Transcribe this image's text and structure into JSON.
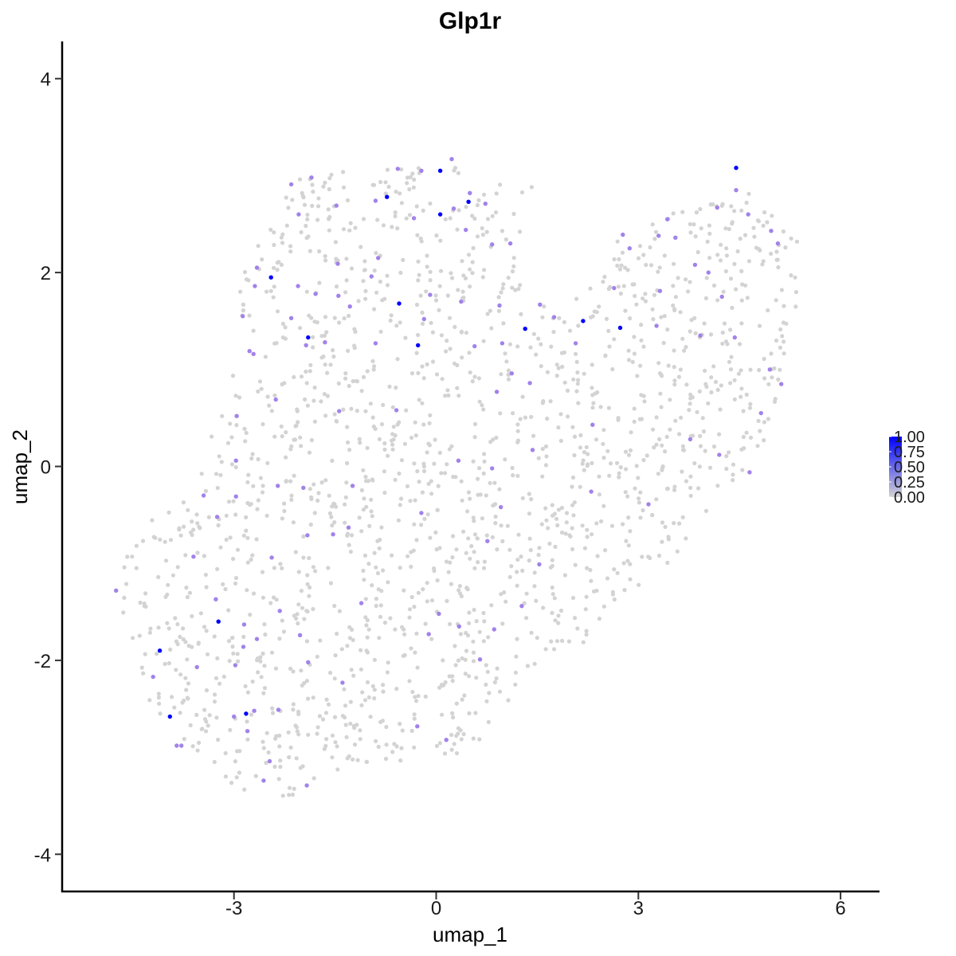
{
  "chart_data": {
    "type": "scatter",
    "title": "Glp1r",
    "xlabel": "umap_1",
    "ylabel": "umap_2",
    "xlim": [
      -5.55,
      6.6
    ],
    "ylim": [
      -4.35,
      4.4
    ],
    "xticks": [
      -3,
      0,
      3,
      6
    ],
    "yticks": [
      -4,
      -2,
      0,
      2,
      4
    ],
    "xtick_labels": [
      "-3",
      "0",
      "3",
      "6"
    ],
    "ytick_labels": [
      "-4",
      "-2",
      "0",
      "2",
      "4"
    ],
    "grid": false,
    "color_scale": {
      "low_color": "#d3d3d3",
      "high_color": "#0000ff",
      "min": 0,
      "max": 1,
      "breaks": [
        1.0,
        0.75,
        0.5,
        0.25,
        0.0
      ],
      "labels": [
        "1.00",
        "0.75",
        "0.50",
        "0.25",
        "0.00"
      ],
      "legend_position": "right"
    },
    "expressing_points": [
      {
        "x": 0.06,
        "y": 3.05,
        "value": 1.0
      },
      {
        "x": 4.45,
        "y": 3.08,
        "value": 1.0
      },
      {
        "x": -0.73,
        "y": 2.78,
        "value": 0.95
      },
      {
        "x": 0.48,
        "y": 2.73,
        "value": 0.95
      },
      {
        "x": 0.06,
        "y": 2.6,
        "value": 0.95
      },
      {
        "x": -2.45,
        "y": 1.95,
        "value": 0.95
      },
      {
        "x": -0.55,
        "y": 1.68,
        "value": 0.95
      },
      {
        "x": -1.9,
        "y": 1.33,
        "value": 0.95
      },
      {
        "x": -0.27,
        "y": 1.25,
        "value": 0.95
      },
      {
        "x": 1.32,
        "y": 1.42,
        "value": 0.95
      },
      {
        "x": 2.18,
        "y": 1.5,
        "value": 0.95
      },
      {
        "x": 2.73,
        "y": 1.43,
        "value": 0.95
      },
      {
        "x": -3.23,
        "y": -1.6,
        "value": 0.95
      },
      {
        "x": -4.1,
        "y": -1.9,
        "value": 0.95
      },
      {
        "x": -2.82,
        "y": -2.55,
        "value": 0.95
      },
      {
        "x": -3.95,
        "y": -2.58,
        "value": 0.95
      },
      {
        "x": 0.23,
        "y": 3.17,
        "value": 0.6
      },
      {
        "x": -0.22,
        "y": 3.05,
        "value": 0.6
      },
      {
        "x": -0.57,
        "y": 3.07,
        "value": 0.6
      },
      {
        "x": -1.85,
        "y": 2.98,
        "value": 0.6
      },
      {
        "x": -2.15,
        "y": 2.91,
        "value": 0.6
      },
      {
        "x": -1.48,
        "y": 2.69,
        "value": 0.6
      },
      {
        "x": -0.9,
        "y": 2.74,
        "value": 0.6
      },
      {
        "x": 0.5,
        "y": 2.82,
        "value": 0.6
      },
      {
        "x": 0.73,
        "y": 2.71,
        "value": 0.6
      },
      {
        "x": 0.26,
        "y": 2.66,
        "value": 0.6
      },
      {
        "x": -0.33,
        "y": 2.56,
        "value": 0.6
      },
      {
        "x": -2.04,
        "y": 2.6,
        "value": 0.6
      },
      {
        "x": 0.44,
        "y": 2.44,
        "value": 0.6
      },
      {
        "x": 0.83,
        "y": 2.29,
        "value": 0.6
      },
      {
        "x": 1.1,
        "y": 2.3,
        "value": 0.6
      },
      {
        "x": -0.86,
        "y": 2.15,
        "value": 0.6
      },
      {
        "x": -1.46,
        "y": 2.09,
        "value": 0.6
      },
      {
        "x": -2.66,
        "y": 2.05,
        "value": 0.6
      },
      {
        "x": -2.69,
        "y": 1.86,
        "value": 0.6
      },
      {
        "x": -2.05,
        "y": 1.86,
        "value": 0.6
      },
      {
        "x": -1.79,
        "y": 1.78,
        "value": 0.6
      },
      {
        "x": -0.96,
        "y": 1.96,
        "value": 0.6
      },
      {
        "x": -1.45,
        "y": 1.76,
        "value": 0.6
      },
      {
        "x": -1.28,
        "y": 1.65,
        "value": 0.6
      },
      {
        "x": -0.09,
        "y": 1.77,
        "value": 0.6
      },
      {
        "x": 0.37,
        "y": 1.7,
        "value": 0.6
      },
      {
        "x": 0.94,
        "y": 1.66,
        "value": 0.6
      },
      {
        "x": 1.54,
        "y": 1.67,
        "value": 0.6
      },
      {
        "x": 1.75,
        "y": 1.54,
        "value": 0.6
      },
      {
        "x": -2.87,
        "y": 1.55,
        "value": 0.6
      },
      {
        "x": -2.15,
        "y": 1.53,
        "value": 0.6
      },
      {
        "x": -0.18,
        "y": 1.52,
        "value": 0.6
      },
      {
        "x": -0.9,
        "y": 1.27,
        "value": 0.6
      },
      {
        "x": -1.65,
        "y": 1.28,
        "value": 0.6
      },
      {
        "x": -2.77,
        "y": 1.19,
        "value": 0.6
      },
      {
        "x": -1.93,
        "y": 1.25,
        "value": 0.6
      },
      {
        "x": -2.71,
        "y": 1.16,
        "value": 0.6
      },
      {
        "x": 0.98,
        "y": 1.27,
        "value": 0.6
      },
      {
        "x": 0.57,
        "y": 1.24,
        "value": 0.6
      },
      {
        "x": 2.07,
        "y": 1.27,
        "value": 0.6
      },
      {
        "x": 2.64,
        "y": 1.84,
        "value": 0.6
      },
      {
        "x": 2.77,
        "y": 2.39,
        "value": 0.6
      },
      {
        "x": 2.87,
        "y": 2.25,
        "value": 0.6
      },
      {
        "x": 3.3,
        "y": 2.38,
        "value": 0.6
      },
      {
        "x": 3.43,
        "y": 2.55,
        "value": 0.6
      },
      {
        "x": 3.55,
        "y": 2.36,
        "value": 0.6
      },
      {
        "x": 3.84,
        "y": 2.08,
        "value": 0.6
      },
      {
        "x": 3.27,
        "y": 1.45,
        "value": 0.6
      },
      {
        "x": 3.32,
        "y": 1.81,
        "value": 0.6
      },
      {
        "x": 4.04,
        "y": 2.0,
        "value": 0.6
      },
      {
        "x": 4.17,
        "y": 2.67,
        "value": 0.6
      },
      {
        "x": 4.45,
        "y": 2.85,
        "value": 0.6
      },
      {
        "x": 4.63,
        "y": 2.6,
        "value": 0.6
      },
      {
        "x": 4.97,
        "y": 2.43,
        "value": 0.6
      },
      {
        "x": 5.07,
        "y": 2.3,
        "value": 0.6
      },
      {
        "x": 3.92,
        "y": 1.35,
        "value": 0.6
      },
      {
        "x": 4.24,
        "y": 1.75,
        "value": 0.6
      },
      {
        "x": 4.43,
        "y": 1.33,
        "value": 0.6
      },
      {
        "x": 4.95,
        "y": 1.0,
        "value": 0.6
      },
      {
        "x": 5.12,
        "y": 0.85,
        "value": 0.6
      },
      {
        "x": 4.82,
        "y": 0.55,
        "value": 0.6
      },
      {
        "x": 3.77,
        "y": 0.28,
        "value": 0.6
      },
      {
        "x": 4.2,
        "y": 0.12,
        "value": 0.6
      },
      {
        "x": 4.65,
        "y": -0.06,
        "value": 0.6
      },
      {
        "x": 3.15,
        "y": -0.39,
        "value": 0.6
      },
      {
        "x": 2.32,
        "y": 0.43,
        "value": 0.6
      },
      {
        "x": 1.43,
        "y": 0.17,
        "value": 0.6
      },
      {
        "x": 1.39,
        "y": 0.86,
        "value": 0.6
      },
      {
        "x": 1.12,
        "y": 0.96,
        "value": 0.6
      },
      {
        "x": 0.9,
        "y": 0.77,
        "value": 0.6
      },
      {
        "x": -0.59,
        "y": 0.58,
        "value": 0.6
      },
      {
        "x": -1.44,
        "y": 0.57,
        "value": 0.6
      },
      {
        "x": -2.38,
        "y": 0.69,
        "value": 0.6
      },
      {
        "x": -2.96,
        "y": 0.52,
        "value": 0.6
      },
      {
        "x": -2.97,
        "y": 0.06,
        "value": 0.6
      },
      {
        "x": -2.97,
        "y": -0.31,
        "value": 0.6
      },
      {
        "x": -3.45,
        "y": -0.3,
        "value": 0.6
      },
      {
        "x": -3.25,
        "y": -0.52,
        "value": 0.6
      },
      {
        "x": -2.35,
        "y": -0.2,
        "value": 0.6
      },
      {
        "x": -1.97,
        "y": -0.22,
        "value": 0.6
      },
      {
        "x": -1.24,
        "y": -0.2,
        "value": 0.6
      },
      {
        "x": 0.33,
        "y": 0.06,
        "value": 0.6
      },
      {
        "x": 0.83,
        "y": -0.02,
        "value": 0.6
      },
      {
        "x": 2.3,
        "y": -0.26,
        "value": 0.6
      },
      {
        "x": 0.96,
        "y": -0.42,
        "value": 0.6
      },
      {
        "x": -1.3,
        "y": -0.63,
        "value": 0.6
      },
      {
        "x": -1.53,
        "y": -0.7,
        "value": 0.6
      },
      {
        "x": -0.22,
        "y": -0.48,
        "value": 0.6
      },
      {
        "x": 0.76,
        "y": -0.77,
        "value": 0.6
      },
      {
        "x": 1.53,
        "y": -1.01,
        "value": 0.6
      },
      {
        "x": -3.6,
        "y": -0.93,
        "value": 0.6
      },
      {
        "x": -2.44,
        "y": -0.94,
        "value": 0.6
      },
      {
        "x": -1.91,
        "y": -0.71,
        "value": 0.6
      },
      {
        "x": -3.27,
        "y": -1.37,
        "value": 0.6
      },
      {
        "x": -4.75,
        "y": -1.28,
        "value": 0.6
      },
      {
        "x": -2.32,
        "y": -1.49,
        "value": 0.6
      },
      {
        "x": -1.11,
        "y": -1.41,
        "value": 0.6
      },
      {
        "x": 0.04,
        "y": -1.52,
        "value": 0.6
      },
      {
        "x": 1.27,
        "y": -1.44,
        "value": 0.6
      },
      {
        "x": 0.34,
        "y": -1.65,
        "value": 0.6
      },
      {
        "x": 0.86,
        "y": -1.68,
        "value": 0.6
      },
      {
        "x": -2.85,
        "y": -1.63,
        "value": 0.6
      },
      {
        "x": -2.66,
        "y": -1.78,
        "value": 0.6
      },
      {
        "x": -2.86,
        "y": -1.86,
        "value": 0.6
      },
      {
        "x": -2.02,
        "y": -1.74,
        "value": 0.6
      },
      {
        "x": -0.11,
        "y": -1.73,
        "value": 0.6
      },
      {
        "x": -3.55,
        "y": -2.07,
        "value": 0.6
      },
      {
        "x": -2.98,
        "y": -2.05,
        "value": 0.6
      },
      {
        "x": -1.9,
        "y": -2.02,
        "value": 0.6
      },
      {
        "x": -1.39,
        "y": -2.23,
        "value": 0.6
      },
      {
        "x": -4.2,
        "y": -2.17,
        "value": 0.6
      },
      {
        "x": 0.65,
        "y": -1.99,
        "value": 0.6
      },
      {
        "x": -2.7,
        "y": -2.52,
        "value": 0.6
      },
      {
        "x": -2.34,
        "y": -2.51,
        "value": 0.6
      },
      {
        "x": -3.0,
        "y": -2.58,
        "value": 0.6
      },
      {
        "x": -2.8,
        "y": -2.73,
        "value": 0.6
      },
      {
        "x": -3.78,
        "y": -2.88,
        "value": 0.6
      },
      {
        "x": -3.85,
        "y": -2.88,
        "value": 0.6
      },
      {
        "x": -0.28,
        "y": -2.68,
        "value": 0.6
      },
      {
        "x": 0.15,
        "y": -2.82,
        "value": 0.6
      },
      {
        "x": -2.47,
        "y": -3.04,
        "value": 0.6
      },
      {
        "x": -2.56,
        "y": -3.24,
        "value": 0.6
      },
      {
        "x": -1.92,
        "y": -3.29,
        "value": 0.6
      }
    ],
    "background_point_value": 0
  }
}
